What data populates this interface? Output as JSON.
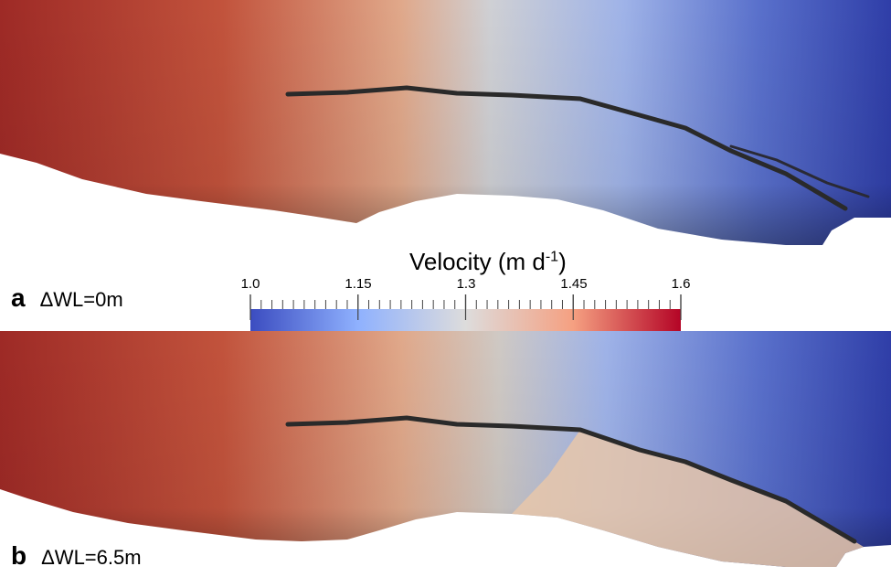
{
  "colorbar": {
    "title_main": "Velocity (m d",
    "title_sup": "-1",
    "title_end": ")",
    "min": 1.0,
    "max": 1.6,
    "tick_labels": [
      "1.0",
      "1.15",
      "1.3",
      "1.45",
      "1.6"
    ],
    "tick_values": [
      1.0,
      1.15,
      1.3,
      1.45,
      1.6
    ],
    "colors": [
      "#3b4cc0",
      "#8fb1fe",
      "#dddcdc",
      "#f5a081",
      "#b40426"
    ]
  },
  "panels": [
    {
      "letter": "a",
      "label": "ΔWL=0m"
    },
    {
      "letter": "b",
      "label": "ΔWL=6.5m"
    }
  ]
}
